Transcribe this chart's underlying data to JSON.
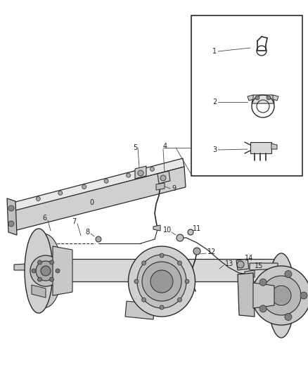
{
  "background_color": "#ffffff",
  "line_color": "#2a2a2a",
  "fig_width": 4.38,
  "fig_height": 5.33,
  "dpi": 100,
  "label_fontsize": 7.0,
  "text_color": "#222222"
}
